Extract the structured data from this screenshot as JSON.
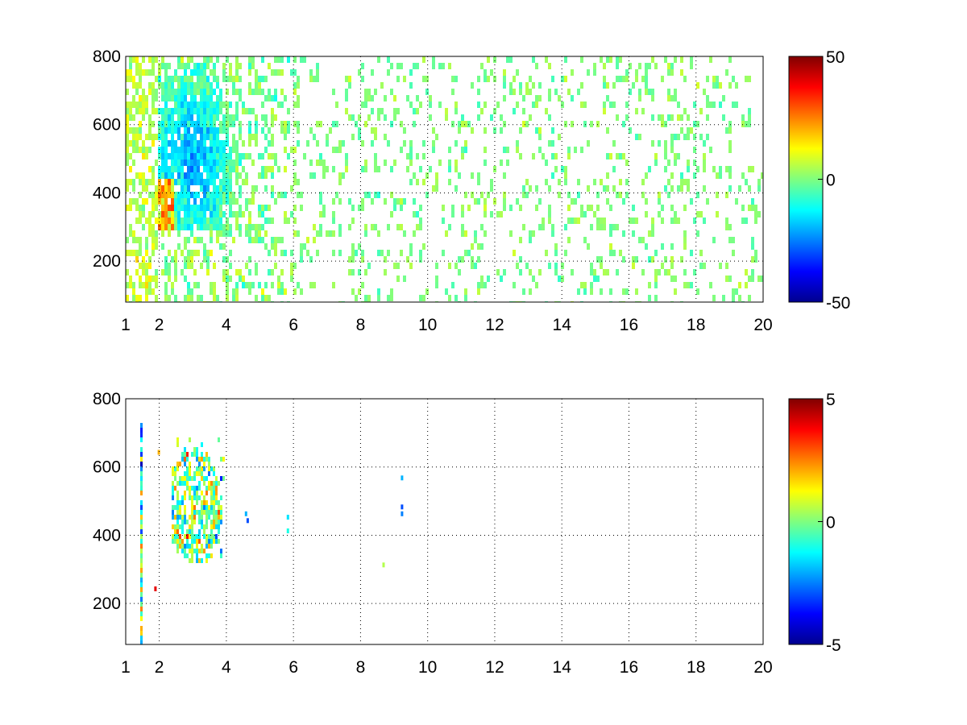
{
  "chart_data": [
    {
      "type": "heatmap",
      "title": "",
      "xlabel": "",
      "ylabel": "",
      "xlim": [
        1,
        20
      ],
      "ylim": [
        80,
        800
      ],
      "grid": true,
      "colormap": "jet",
      "xticks": [
        1,
        2,
        4,
        6,
        8,
        10,
        12,
        14,
        16,
        18,
        20
      ],
      "yticks": [
        200,
        400,
        600,
        800
      ],
      "colorbar": {
        "ticks": [
          50,
          0,
          -50
        ],
        "range": [
          -50,
          50
        ]
      },
      "description": "Sparse scatter of short vertical colored streaks; dense cluster of mostly negative values (blue/cyan) around x=2.3-3.3, y=350-650, with warm (yellow/red) values near x=2, y~400; sparse near-zero streaks (green/yellow) extend across all x to 20."
    },
    {
      "type": "heatmap",
      "title": "",
      "xlabel": "",
      "ylabel": "",
      "xlim": [
        1,
        20
      ],
      "ylim": [
        80,
        800
      ],
      "grid": true,
      "colormap": "jet",
      "xticks": [
        1,
        2,
        4,
        6,
        8,
        10,
        12,
        14,
        16,
        18,
        20
      ],
      "yticks": [
        200,
        400,
        600,
        800
      ],
      "colorbar": {
        "ticks": [
          5,
          0,
          -5
        ],
        "range": [
          -5,
          5
        ]
      },
      "description": "Very sparse: main cluster around x=2.4-3.9, y=330-700 with mixed red/yellow/cyan values; a thin vertical streak near x=1.45; isolated marks near x=4.6, x=5.8 and x=9.2."
    }
  ]
}
